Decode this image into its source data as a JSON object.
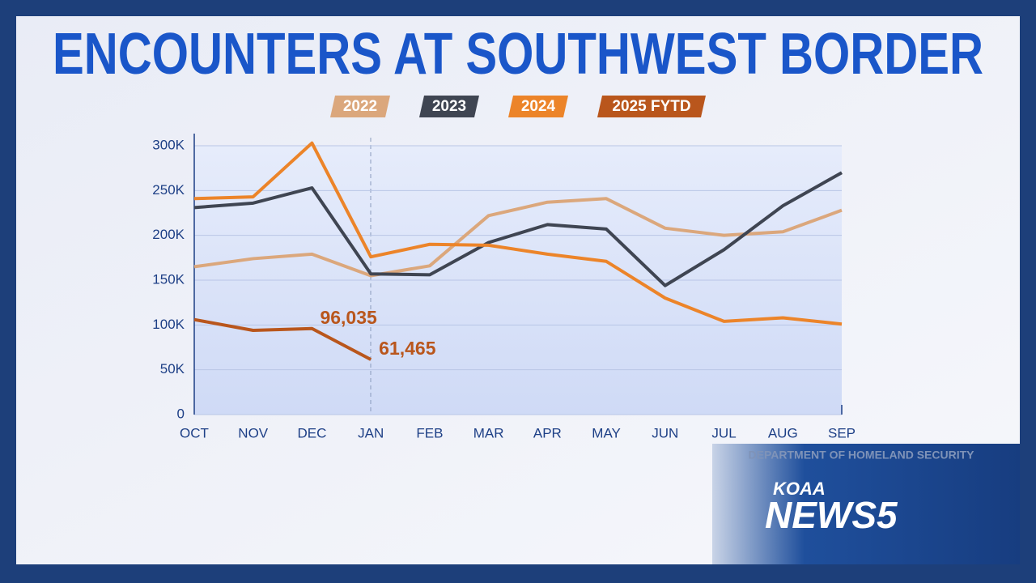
{
  "chart_data": {
    "type": "line",
    "title": "ENCOUNTERS AT SOUTHWEST BORDER",
    "categories": [
      "OCT",
      "NOV",
      "DEC",
      "JAN",
      "FEB",
      "MAR",
      "APR",
      "MAY",
      "JUN",
      "JUL",
      "AUG",
      "SEP"
    ],
    "series": [
      {
        "name": "2022",
        "color": "#dba77c",
        "values": [
          165000,
          174000,
          179000,
          155000,
          166000,
          222000,
          237000,
          241000,
          208000,
          200000,
          204000,
          228000
        ]
      },
      {
        "name": "2023",
        "color": "#3f4552",
        "values": [
          231000,
          236000,
          253000,
          157000,
          156000,
          192000,
          212000,
          207000,
          144000,
          184000,
          233000,
          270000
        ]
      },
      {
        "name": "2024",
        "color": "#ec8429",
        "values": [
          241000,
          243000,
          303000,
          176000,
          190000,
          189000,
          179000,
          171000,
          130000,
          104000,
          108000,
          101000
        ]
      },
      {
        "name": "2025 FYTD",
        "color": "#b9561c",
        "values": [
          106000,
          94000,
          96035,
          61465,
          null,
          null,
          null,
          null,
          null,
          null,
          null,
          null
        ],
        "value_labels": [
          null,
          null,
          "96,035",
          "61,465",
          null,
          null,
          null,
          null,
          null,
          null,
          null,
          null
        ]
      }
    ],
    "ylim": [
      0,
      300000
    ],
    "yticks": [
      0,
      {
        "value": 50000,
        "label": "50K"
      },
      {
        "value": 100000,
        "label": "100K"
      },
      {
        "value": 150000,
        "label": "150K"
      },
      {
        "value": 200000,
        "label": "200K"
      },
      {
        "value": 250000,
        "label": "250K"
      },
      {
        "value": 300000,
        "label": "300K"
      }
    ],
    "grid": true,
    "source": "DEPARTMENT OF HOMELAND SECURITY"
  },
  "branding": {
    "station": "KOAA",
    "name": "NEWS5"
  }
}
